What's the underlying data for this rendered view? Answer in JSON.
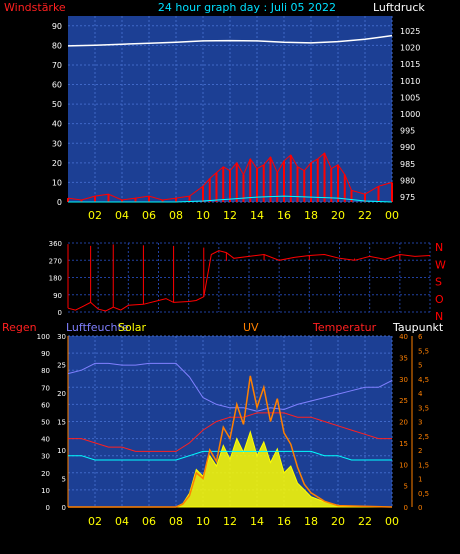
{
  "header": {
    "left_label": "Windstärke",
    "title": "24 hour graph day : Juli 05 2022",
    "right_label": "Luftdruck"
  },
  "colors": {
    "background": "#000000",
    "plot_bg": "#1c3f94",
    "grid": "#3f68c8",
    "wind": "#ff0000",
    "gust": "#00ffff",
    "pressure": "#ffffff",
    "tick_label": "#ffffff",
    "hour_label": "#ffff00",
    "direction": "#ff0000",
    "humidity": "#8080ff",
    "solar": "#ffff00",
    "uv": "#ff8000",
    "temperature": "#ff2020",
    "dewpoint": "#00ffff"
  },
  "chart_data": [
    {
      "type": "line",
      "title": "24 hour graph day : Juli 05 2022",
      "left_axis_label": "Windstärke",
      "right_axis_label": "Luftdruck",
      "x_hours": [
        "02",
        "04",
        "06",
        "08",
        "10",
        "12",
        "14",
        "16",
        "18",
        "20",
        "22",
        "00"
      ],
      "xlim": [
        0,
        24
      ],
      "left_ylim": [
        0,
        95
      ],
      "left_ticks": [
        "90",
        "80",
        "70",
        "60",
        "50",
        "40",
        "30",
        "20",
        "10",
        "0"
      ],
      "right_ylim": [
        973.5,
        1029.5
      ],
      "right_ticks": [
        "1025",
        "1020",
        "1015",
        "1010",
        "1005",
        "1000",
        "995",
        "990",
        "985",
        "980",
        "975"
      ],
      "grid": true,
      "series": [
        {
          "key": "pressure",
          "color": "#ffffff",
          "axis": "right",
          "x": [
            0,
            2,
            4,
            6,
            8,
            10,
            12,
            14,
            16,
            18,
            20,
            22,
            24
          ],
          "y": [
            1020.5,
            1020.7,
            1021.0,
            1021.3,
            1021.6,
            1022.0,
            1022.1,
            1022.0,
            1021.6,
            1021.4,
            1021.8,
            1022.5,
            1023.6
          ]
        },
        {
          "key": "wind",
          "color": "#ff0000",
          "axis": "left",
          "x": [
            0,
            1,
            2,
            3,
            4,
            5,
            6,
            7,
            8,
            9,
            10,
            10.5,
            11,
            11.5,
            12,
            12.5,
            13,
            13.5,
            14,
            14.5,
            15,
            15.5,
            16,
            16.5,
            17,
            17.5,
            18,
            18.5,
            19,
            19.5,
            20,
            20.5,
            21,
            22,
            23,
            24
          ],
          "y": [
            2,
            1,
            3,
            4,
            1,
            2,
            3,
            1,
            2,
            3,
            8,
            12,
            15,
            18,
            16,
            20,
            14,
            22,
            17,
            19,
            23,
            15,
            21,
            24,
            18,
            16,
            20,
            22,
            25,
            17,
            19,
            14,
            6,
            4,
            8,
            10
          ]
        },
        {
          "key": "gust",
          "color": "#00ffff",
          "axis": "left",
          "x": [
            0,
            8,
            10,
            12,
            14,
            16,
            18,
            20,
            22,
            24
          ],
          "y": [
            0,
            0,
            0.5,
            1.5,
            2.5,
            3,
            2.5,
            2,
            0.5,
            0
          ]
        }
      ]
    },
    {
      "type": "line",
      "right_labels": [
        "N",
        "W",
        "S",
        "O",
        "N"
      ],
      "left_ticks": [
        "360",
        "270",
        "180",
        "90",
        "0"
      ],
      "ylim": [
        0,
        360
      ],
      "xlim": [
        0,
        24
      ],
      "grid": true,
      "series": [
        {
          "key": "direction",
          "color": "#ff0000",
          "x": [
            0,
            0.5,
            1,
            1.5,
            2,
            2.5,
            3,
            3.5,
            4,
            5,
            6,
            6.5,
            7,
            8,
            8.5,
            9,
            9.5,
            10,
            10.5,
            11,
            12,
            13,
            14,
            15,
            16,
            17,
            18,
            19,
            20,
            21,
            22,
            23,
            24
          ],
          "y": [
            20,
            10,
            30,
            50,
            15,
            5,
            25,
            10,
            35,
            40,
            60,
            70,
            50,
            55,
            60,
            80,
            300,
            320,
            310,
            280,
            290,
            300,
            270,
            285,
            295,
            300,
            280,
            270,
            290,
            275,
            300,
            290,
            295
          ]
        }
      ]
    },
    {
      "type": "line",
      "labels": {
        "regen": "Regen",
        "feuchte": "Luftfeuchte",
        "solar": "Solar",
        "uv": "UV",
        "temp": "Temperatur",
        "taupunkt": "Taupunkt"
      },
      "x_hours": [
        "02",
        "04",
        "06",
        "08",
        "10",
        "12",
        "14",
        "16",
        "18",
        "20",
        "22",
        "00"
      ],
      "xlim": [
        0,
        24
      ],
      "humidity_ticks": [
        "100",
        "90",
        "80",
        "70",
        "60",
        "50",
        "40",
        "30",
        "20",
        "10",
        "0"
      ],
      "humidity_ylim": [
        0,
        100
      ],
      "rain_ticks": [
        "30",
        "25",
        "20",
        "15",
        "10",
        "5",
        "0"
      ],
      "rain_ylim": [
        0,
        30
      ],
      "temp_ticks": [
        "40",
        "35",
        "30",
        "25",
        "20",
        "15",
        "10",
        "5",
        "0"
      ],
      "temp_ylim": [
        0,
        40
      ],
      "uv_ticks": [
        "6",
        "5,5",
        "5",
        "4,5",
        "4",
        "3,5",
        "3",
        "2,5",
        "2",
        "1,5",
        "1",
        "0,5",
        "0"
      ],
      "uv_ylim": [
        0,
        6
      ],
      "grid": true,
      "series": [
        {
          "key": "humidity",
          "color": "#8080ff",
          "axis": "humidity",
          "x": [
            0,
            1,
            2,
            3,
            4,
            5,
            6,
            7,
            8,
            9,
            10,
            11,
            12,
            13,
            14,
            15,
            16,
            17,
            18,
            19,
            20,
            21,
            22,
            23,
            24
          ],
          "y": [
            78,
            80,
            84,
            84,
            83,
            83,
            84,
            84,
            84,
            76,
            64,
            60,
            58,
            58,
            56,
            58,
            57,
            60,
            62,
            64,
            66,
            68,
            70,
            70,
            74
          ]
        },
        {
          "key": "temperature",
          "color": "#ff2020",
          "axis": "temp",
          "x": [
            0,
            1,
            2,
            3,
            4,
            5,
            6,
            7,
            8,
            9,
            10,
            11,
            12,
            13,
            14,
            15,
            16,
            17,
            18,
            19,
            20,
            21,
            22,
            23,
            24
          ],
          "y": [
            16,
            16,
            15,
            14,
            14,
            13,
            13,
            13,
            13,
            15,
            18,
            20,
            21,
            21,
            22,
            22,
            22,
            21,
            21,
            20,
            19,
            18,
            17,
            16,
            16
          ]
        },
        {
          "key": "dewpoint",
          "color": "#00ffff",
          "axis": "temp",
          "x": [
            0,
            1,
            2,
            3,
            4,
            5,
            6,
            7,
            8,
            9,
            10,
            11,
            12,
            13,
            14,
            15,
            16,
            17,
            18,
            19,
            20,
            21,
            22,
            23,
            24
          ],
          "y": [
            12,
            12,
            11,
            11,
            11,
            11,
            11,
            11,
            11,
            12,
            13,
            13,
            13,
            13,
            13,
            13,
            13,
            13,
            13,
            12,
            12,
            11,
            11,
            11,
            11
          ]
        },
        {
          "key": "solar",
          "color": "#ffff00",
          "axis": "humidity",
          "x": [
            0,
            8,
            8.5,
            9,
            9.5,
            10,
            10.5,
            11,
            11.5,
            12,
            12.5,
            13,
            13.5,
            14,
            14.5,
            15,
            15.5,
            16,
            16.5,
            17,
            17.5,
            18,
            19,
            20,
            21,
            24
          ],
          "y": [
            0,
            0,
            2,
            8,
            22,
            18,
            30,
            24,
            36,
            28,
            40,
            32,
            44,
            30,
            38,
            26,
            34,
            20,
            24,
            14,
            10,
            6,
            3,
            1,
            0,
            0
          ]
        },
        {
          "key": "uv",
          "color": "#ff8000",
          "axis": "uv",
          "x": [
            0,
            8,
            8.5,
            9,
            9.5,
            10,
            10.5,
            11,
            11.5,
            12,
            12.5,
            13,
            13.5,
            14,
            14.5,
            15,
            15.5,
            16,
            16.5,
            17,
            17.5,
            18,
            19,
            20,
            24
          ],
          "y": [
            0,
            0,
            0.1,
            0.4,
            1.2,
            1.0,
            2.0,
            1.6,
            2.8,
            2.4,
            3.6,
            2.9,
            4.6,
            3.5,
            4.2,
            3.0,
            3.8,
            2.6,
            2.2,
            1.4,
            0.8,
            0.5,
            0.2,
            0.05,
            0
          ]
        }
      ]
    }
  ]
}
